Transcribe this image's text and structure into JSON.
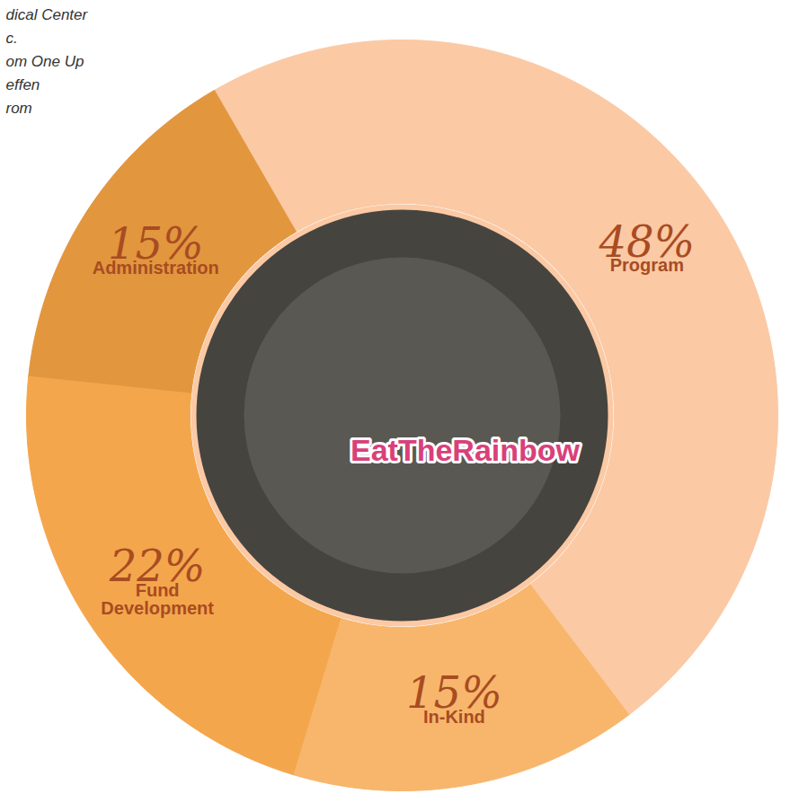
{
  "chart_data": {
    "type": "donut",
    "categories": [
      "Program",
      "In-Kind",
      "Fund Development",
      "Administration"
    ],
    "values": [
      48,
      15,
      22,
      15
    ],
    "value_labels": [
      "48%",
      "15%",
      "22%",
      "15%"
    ],
    "colors": [
      "#fbc9a4",
      "#f7b66c",
      "#f4a64c",
      "#e2963e"
    ],
    "data_labels": true,
    "tick_labels": false,
    "annotations": [
      "dical Center",
      "c.",
      "om One Up",
      "effen",
      "rom"
    ],
    "image_text": "EatTheRainbow"
  }
}
